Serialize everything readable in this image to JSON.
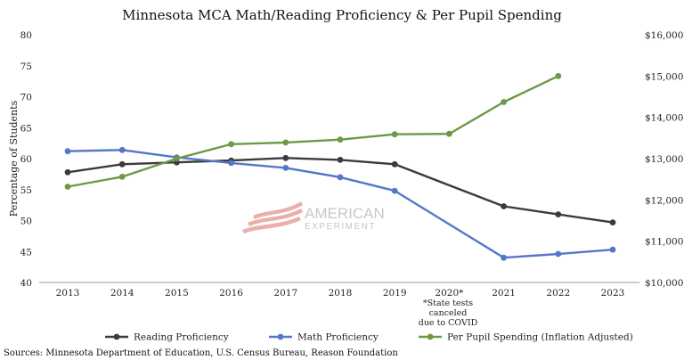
{
  "chart_data": {
    "type": "line",
    "title": "Minnesota MCA Math/Reading Proficiency & Per Pupil Spending",
    "xlabel": "",
    "ylabel": "Percentage of Students",
    "categories": [
      "2013",
      "2014",
      "2015",
      "2016",
      "2017",
      "2018",
      "2019",
      "2020*",
      "2021",
      "2022",
      "2023"
    ],
    "ylim": [
      40,
      80
    ],
    "y_ticks": [
      "40",
      "45",
      "50",
      "55",
      "60",
      "65",
      "70",
      "75",
      "80"
    ],
    "y2lim": [
      10000,
      16000
    ],
    "y2_ticks": [
      "$10,000",
      "$11,000",
      "$12,000",
      "$13,000",
      "$14,000",
      "$15,000",
      "$16,000"
    ],
    "series": [
      {
        "name": "Reading Proficiency",
        "axis": "left",
        "color": "#3b3b3b",
        "values": [
          57.8,
          59.1,
          59.4,
          59.7,
          60.1,
          59.8,
          59.1,
          null,
          52.3,
          51.0,
          49.7
        ]
      },
      {
        "name": "Math Proficiency",
        "axis": "left",
        "color": "#5577c9",
        "values": [
          61.2,
          61.4,
          60.2,
          59.3,
          58.5,
          57.0,
          54.8,
          null,
          44.0,
          44.6,
          45.3
        ]
      },
      {
        "name": "Per Pupil Spending (Inflation Adjusted)",
        "axis": "right",
        "color": "#6b9a46",
        "values": [
          12320,
          12560,
          13000,
          13350,
          13390,
          13460,
          13590,
          13600,
          14370,
          15000,
          null
        ]
      }
    ],
    "annotations": [
      "*State tests",
      "canceled",
      "due to COVID"
    ],
    "watermark": [
      "AMERICAN",
      "EXPERIMENT"
    ],
    "source": "Sources: Minnesota Department of Education, U.S. Census Bureau, Reason Foundation",
    "legend_position": "bottom"
  }
}
